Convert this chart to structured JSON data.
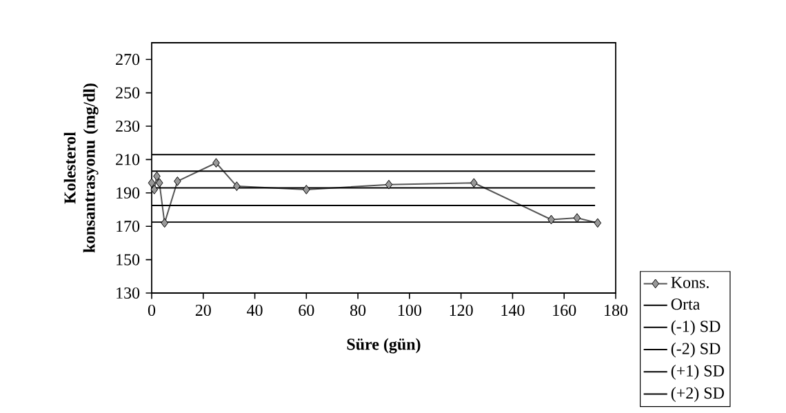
{
  "chart_data": {
    "type": "line",
    "xlabel": "Süre (gün)",
    "ylabel": "Kolesterol konsantrasyonu (mg/dl)",
    "xlim": [
      0,
      180
    ],
    "xticks": [
      0,
      20,
      40,
      60,
      80,
      100,
      120,
      140,
      160,
      180
    ],
    "ylim": [
      130,
      280
    ],
    "yticks": [
      130,
      150,
      170,
      190,
      210,
      230,
      250,
      270
    ],
    "grid": false,
    "legend": "right",
    "marker": "diamond",
    "series": [
      {
        "name": "Kons.",
        "color": "#555555",
        "x": [
          0,
          1,
          2,
          3,
          5,
          10,
          25,
          33,
          60,
          92,
          125,
          155,
          165,
          173
        ],
        "values": [
          196,
          192,
          200,
          196,
          172,
          197,
          208,
          194,
          192,
          195,
          196,
          174,
          175,
          172
        ]
      },
      {
        "name": "Orta",
        "color": "#000000",
        "marker": "none",
        "x": [
          0,
          172
        ],
        "values": [
          193,
          193
        ]
      },
      {
        "name": "(-1) SD",
        "color": "#000000",
        "marker": "none",
        "x": [
          0,
          172
        ],
        "values": [
          182.5,
          182.5
        ]
      },
      {
        "name": "(-2) SD",
        "color": "#000000",
        "marker": "none",
        "x": [
          0,
          172
        ],
        "values": [
          172.5,
          172.5
        ]
      },
      {
        "name": "(+1) SD",
        "color": "#000000",
        "marker": "none",
        "x": [
          0,
          172
        ],
        "values": [
          203,
          203
        ]
      },
      {
        "name": "(+2) SD",
        "color": "#000000",
        "marker": "none",
        "x": [
          0,
          172
        ],
        "values": [
          213,
          213
        ]
      }
    ]
  }
}
